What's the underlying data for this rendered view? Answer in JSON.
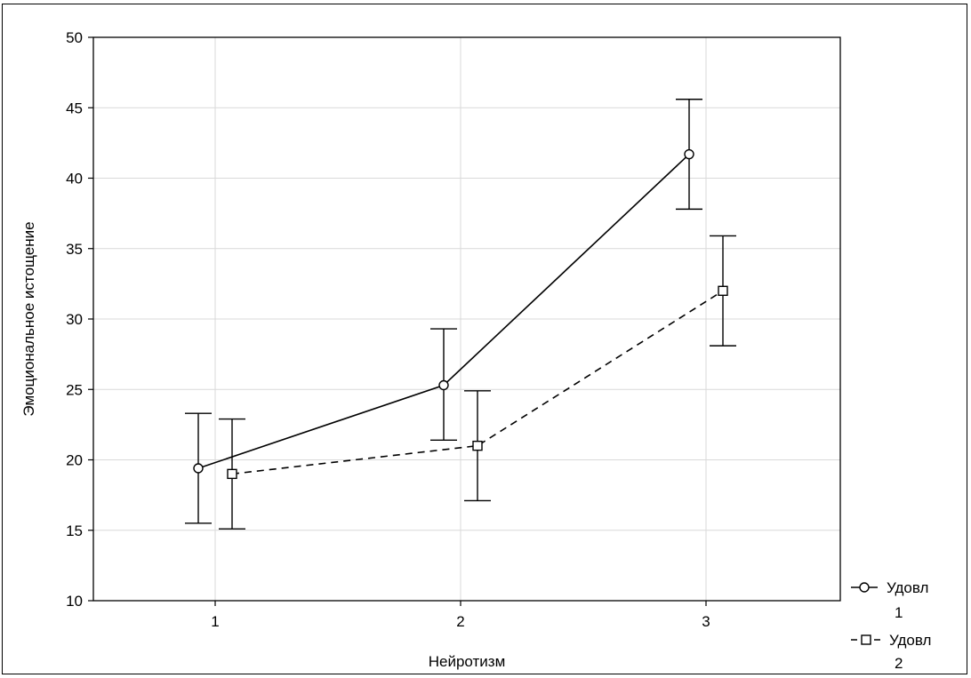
{
  "chart_data": {
    "type": "line",
    "title": "",
    "xlabel": "Нейротизм",
    "ylabel": "Эмоциональное истощение",
    "categories": [
      "1",
      "2",
      "3"
    ],
    "ylim": [
      10,
      50
    ],
    "yticks": [
      10,
      15,
      20,
      25,
      30,
      35,
      40,
      45,
      50
    ],
    "grid": true,
    "legend_position": "right-bottom",
    "series": [
      {
        "name": "Удовл 1",
        "marker": "circle",
        "line_style": "solid",
        "values": [
          19.4,
          25.3,
          41.7
        ],
        "error_low": [
          15.5,
          21.4,
          37.8
        ],
        "error_high": [
          23.3,
          29.3,
          45.6
        ]
      },
      {
        "name": "Удовл 2",
        "marker": "square",
        "line_style": "dashed",
        "values": [
          19.0,
          21.0,
          32.0
        ],
        "error_low": [
          15.1,
          17.1,
          28.1
        ],
        "error_high": [
          22.9,
          24.9,
          35.9
        ]
      }
    ]
  },
  "legend": {
    "item1_line1": "Удовл",
    "item1_line2": "1",
    "item2_line1": "Удовл",
    "item2_line2": "2"
  },
  "colors": {
    "line": "#000000",
    "grid": "#d9d9d9"
  }
}
